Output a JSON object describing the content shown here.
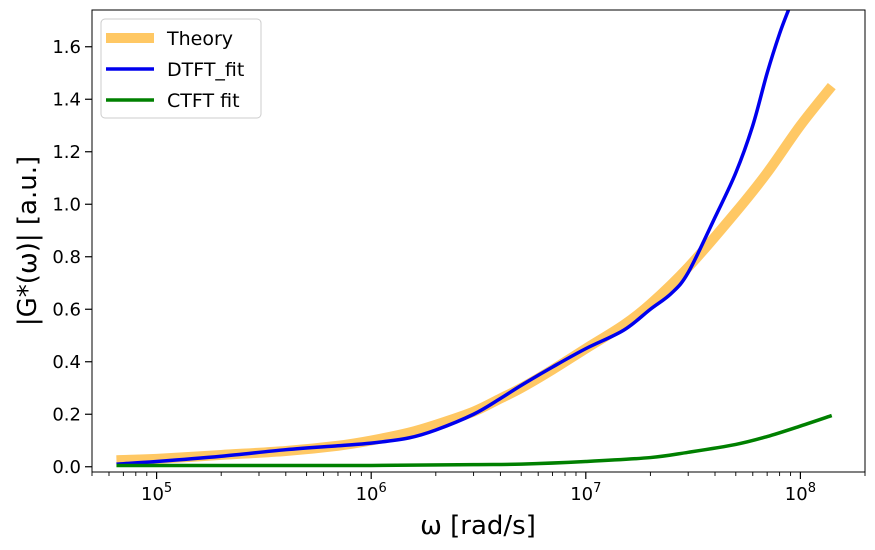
{
  "chart_data": {
    "type": "line",
    "title": "",
    "xlabel": "ω [rad/s]",
    "ylabel": "|G*(ω)| [a.u.]",
    "xscale": "log",
    "xlim": [
      50000,
      200000000
    ],
    "ylim": [
      -0.02,
      1.74
    ],
    "xticks": [
      {
        "value": 100000,
        "base": "10",
        "exp": "5"
      },
      {
        "value": 1000000,
        "base": "10",
        "exp": "6"
      },
      {
        "value": 10000000,
        "base": "10",
        "exp": "7"
      },
      {
        "value": 100000000,
        "base": "10",
        "exp": "8"
      }
    ],
    "yticks": [
      "0.0",
      "0.2",
      "0.4",
      "0.6",
      "0.8",
      "1.0",
      "1.2",
      "1.4",
      "1.6"
    ],
    "grid": false,
    "legend_position": "top-left",
    "series": [
      {
        "name": "Theory",
        "color": "#ffc864",
        "style": "thick",
        "points": [
          [
            65000,
            0.025
          ],
          [
            100000,
            0.03
          ],
          [
            200000,
            0.045
          ],
          [
            400000,
            0.06
          ],
          [
            700000,
            0.08
          ],
          [
            1000000,
            0.1
          ],
          [
            1500000,
            0.13
          ],
          [
            2000000,
            0.16
          ],
          [
            3000000,
            0.21
          ],
          [
            4000000,
            0.26
          ],
          [
            5000000,
            0.3
          ],
          [
            7000000,
            0.37
          ],
          [
            10000000,
            0.45
          ],
          [
            15000000,
            0.54
          ],
          [
            20000000,
            0.62
          ],
          [
            30000000,
            0.76
          ],
          [
            50000000,
            0.97
          ],
          [
            70000000,
            1.12
          ],
          [
            100000000,
            1.3
          ],
          [
            140000000,
            1.45
          ]
        ]
      },
      {
        "name": "DTFT_fit",
        "color": "#0000ee",
        "style": "normal",
        "points": [
          [
            65000,
            0.01
          ],
          [
            100000,
            0.02
          ],
          [
            200000,
            0.04
          ],
          [
            400000,
            0.065
          ],
          [
            700000,
            0.08
          ],
          [
            1000000,
            0.09
          ],
          [
            1500000,
            0.11
          ],
          [
            2000000,
            0.14
          ],
          [
            3000000,
            0.2
          ],
          [
            4000000,
            0.26
          ],
          [
            5000000,
            0.31
          ],
          [
            7000000,
            0.38
          ],
          [
            10000000,
            0.45
          ],
          [
            15000000,
            0.52
          ],
          [
            20000000,
            0.6
          ],
          [
            25000000,
            0.66
          ],
          [
            30000000,
            0.74
          ],
          [
            40000000,
            0.95
          ],
          [
            50000000,
            1.12
          ],
          [
            60000000,
            1.3
          ],
          [
            70000000,
            1.5
          ],
          [
            80000000,
            1.65
          ],
          [
            88000000,
            1.74
          ]
        ]
      },
      {
        "name": "CTFT fit",
        "color": "#008000",
        "style": "normal",
        "points": [
          [
            65000,
            0.005
          ],
          [
            200000,
            0.005
          ],
          [
            1000000,
            0.005
          ],
          [
            3000000,
            0.008
          ],
          [
            5000000,
            0.01
          ],
          [
            10000000,
            0.02
          ],
          [
            20000000,
            0.035
          ],
          [
            30000000,
            0.055
          ],
          [
            50000000,
            0.085
          ],
          [
            70000000,
            0.115
          ],
          [
            100000000,
            0.155
          ],
          [
            140000000,
            0.195
          ]
        ]
      }
    ]
  }
}
